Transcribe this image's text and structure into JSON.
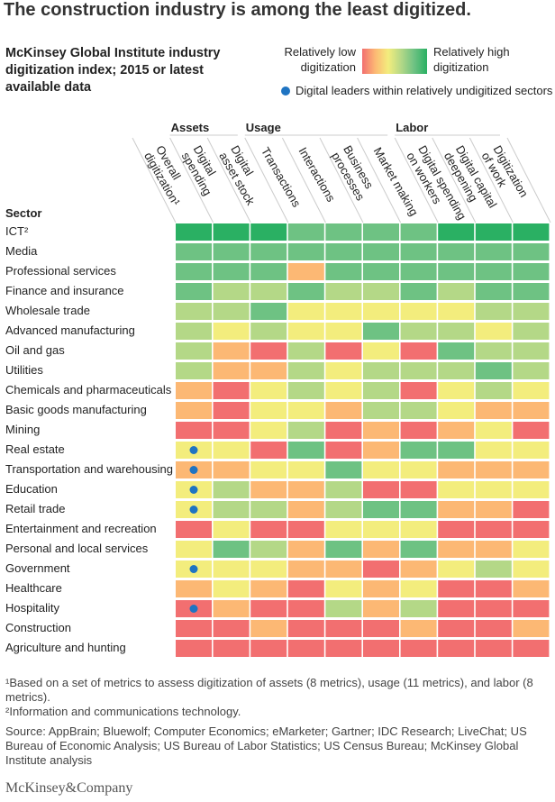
{
  "title": "The construction industry is among the least digitized.",
  "subtitle": "McKinsey Global Institute industry digitization index; 2015 or latest available data",
  "legend": {
    "low": "Relatively low digitization",
    "high": "Relatively high digitization",
    "dot": "Digital leaders within relatively undigitized sectors"
  },
  "chart_data": {
    "type": "heatmap",
    "row_header": "Sector",
    "groups": [
      {
        "label": "Assets",
        "columns": [
          1,
          2
        ]
      },
      {
        "label": "Usage",
        "columns": [
          3,
          4,
          5,
          6
        ]
      },
      {
        "label": "Labor",
        "columns": [
          7,
          8,
          9
        ]
      }
    ],
    "columns": [
      [
        "Overall",
        "digitization¹"
      ],
      [
        "Digital",
        "spending"
      ],
      [
        "Digital",
        "asset stock"
      ],
      [
        "Transactions"
      ],
      [
        "Interactions"
      ],
      [
        "Business",
        "processes"
      ],
      [
        "Market making"
      ],
      [
        "Digital spending",
        "on workers"
      ],
      [
        "Digital capital",
        "deepening"
      ],
      [
        "Digitization",
        "of work"
      ]
    ],
    "scale": "0 = relatively low digitization ... 5 = relatively high digitization",
    "colors": [
      "#f26f70",
      "#fcb874",
      "#f3ed7d",
      "#b4d887",
      "#6ec283",
      "#2ab063"
    ],
    "dot_color": "#1f74c2",
    "rows": [
      {
        "label": "ICT²",
        "values": [
          5,
          5,
          5,
          4,
          4,
          4,
          4,
          5,
          5,
          5
        ],
        "leader": false
      },
      {
        "label": "Media",
        "values": [
          4,
          4,
          4,
          4,
          4,
          4,
          4,
          4,
          4,
          4
        ],
        "leader": false
      },
      {
        "label": "Professional services",
        "values": [
          4,
          4,
          4,
          1,
          4,
          4,
          4,
          4,
          4,
          4
        ],
        "leader": false
      },
      {
        "label": "Finance and insurance",
        "values": [
          4,
          3,
          3,
          4,
          3,
          3,
          4,
          3,
          4,
          4
        ],
        "leader": false
      },
      {
        "label": "Wholesale trade",
        "values": [
          3,
          3,
          4,
          2,
          2,
          2,
          2,
          2,
          3,
          3
        ],
        "leader": false
      },
      {
        "label": "Advanced manufacturing",
        "values": [
          3,
          2,
          3,
          2,
          2,
          4,
          3,
          3,
          2,
          3
        ],
        "leader": false
      },
      {
        "label": "Oil and gas",
        "values": [
          3,
          1,
          0,
          3,
          0,
          2,
          0,
          4,
          3,
          3
        ],
        "leader": false
      },
      {
        "label": "Utilities",
        "values": [
          3,
          1,
          1,
          3,
          2,
          3,
          3,
          3,
          4,
          3
        ],
        "leader": false
      },
      {
        "label": "Chemicals and pharmaceuticals",
        "values": [
          1,
          0,
          2,
          3,
          2,
          3,
          0,
          2,
          3,
          2
        ],
        "leader": false
      },
      {
        "label": "Basic goods manufacturing",
        "values": [
          1,
          0,
          2,
          2,
          1,
          3,
          3,
          2,
          1,
          1
        ],
        "leader": false
      },
      {
        "label": "Mining",
        "values": [
          0,
          0,
          2,
          3,
          0,
          1,
          0,
          1,
          2,
          0
        ],
        "leader": false
      },
      {
        "label": "Real estate",
        "values": [
          2,
          2,
          0,
          4,
          0,
          1,
          4,
          4,
          2,
          2
        ],
        "leader": true
      },
      {
        "label": "Transportation and warehousing",
        "values": [
          1,
          1,
          2,
          2,
          4,
          2,
          2,
          1,
          1,
          1
        ],
        "leader": true
      },
      {
        "label": "Education",
        "values": [
          2,
          3,
          1,
          1,
          3,
          0,
          0,
          2,
          2,
          2
        ],
        "leader": true
      },
      {
        "label": "Retail trade",
        "values": [
          2,
          3,
          3,
          1,
          3,
          4,
          4,
          1,
          1,
          0
        ],
        "leader": true
      },
      {
        "label": "Entertainment and recreation",
        "values": [
          0,
          2,
          0,
          0,
          2,
          2,
          2,
          0,
          0,
          0
        ],
        "leader": false
      },
      {
        "label": "Personal and local services",
        "values": [
          2,
          4,
          3,
          1,
          4,
          1,
          4,
          1,
          1,
          2
        ],
        "leader": false
      },
      {
        "label": "Government",
        "values": [
          2,
          2,
          2,
          1,
          1,
          0,
          1,
          2,
          3,
          2
        ],
        "leader": true
      },
      {
        "label": "Healthcare",
        "values": [
          1,
          2,
          1,
          0,
          2,
          1,
          2,
          0,
          0,
          1
        ],
        "leader": false
      },
      {
        "label": "Hospitality",
        "values": [
          0,
          1,
          0,
          0,
          3,
          1,
          3,
          0,
          0,
          0
        ],
        "leader": true
      },
      {
        "label": "Construction",
        "values": [
          0,
          0,
          1,
          0,
          0,
          0,
          1,
          0,
          0,
          1
        ],
        "leader": false
      },
      {
        "label": "Agriculture and hunting",
        "values": [
          0,
          0,
          0,
          0,
          0,
          0,
          0,
          0,
          0,
          0
        ],
        "leader": false
      }
    ]
  },
  "footnotes": {
    "note1": "¹Based on a set of metrics to assess digitization of assets (8 metrics), usage (11 metrics), and labor (8 metrics).",
    "note2": "²Information and communications technology.",
    "source": "Source: AppBrain; Bluewolf; Computer Economics; eMarketer; Gartner; IDC Research; LiveChat; US Bureau of Economic Analysis; US Bureau of Labor Statistics; US Census Bureau; McKinsey Global Institute analysis"
  },
  "brand": "McKinsey&Company"
}
